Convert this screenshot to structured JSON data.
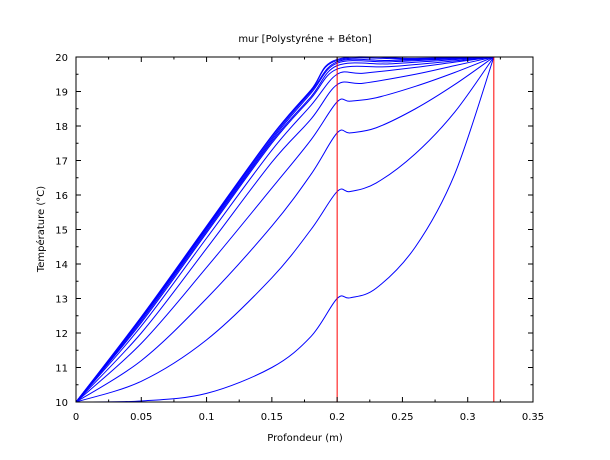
{
  "chart_data": {
    "type": "line",
    "title": "mur [Polystyréne + Béton]",
    "xlabel": "Profondeur (m)",
    "ylabel": "Température (°C)",
    "xlim": [
      0,
      0.35
    ],
    "ylim": [
      10,
      20
    ],
    "xticks": [
      "0",
      "0.05",
      "0.1",
      "0.15",
      "0.2",
      "0.25",
      "0.3",
      "0.35"
    ],
    "yticks": [
      "10",
      "11",
      "12",
      "13",
      "14",
      "15",
      "16",
      "17",
      "18",
      "19",
      "20"
    ],
    "grid": false,
    "legend": "none",
    "colors": {
      "series": "#0000ff",
      "verticals": "#ff0000",
      "frame": "#000000"
    },
    "interface_lines_x": [
      0.2,
      0.32
    ],
    "series": [
      {
        "points": [
          [
            0,
            10
          ],
          [
            0.05,
            10.03
          ],
          [
            0.1,
            10.25
          ],
          [
            0.15,
            11.0
          ],
          [
            0.18,
            11.9
          ],
          [
            0.2,
            13.0
          ],
          [
            0.21,
            13.02
          ],
          [
            0.23,
            13.3
          ],
          [
            0.26,
            14.5
          ],
          [
            0.29,
            16.6
          ],
          [
            0.32,
            20
          ]
        ]
      },
      {
        "points": [
          [
            0,
            10
          ],
          [
            0.05,
            10.6
          ],
          [
            0.1,
            11.8
          ],
          [
            0.15,
            13.6
          ],
          [
            0.18,
            15.0
          ],
          [
            0.2,
            16.1
          ],
          [
            0.21,
            16.1
          ],
          [
            0.23,
            16.35
          ],
          [
            0.26,
            17.2
          ],
          [
            0.29,
            18.4
          ],
          [
            0.32,
            20
          ]
        ]
      },
      {
        "points": [
          [
            0,
            10
          ],
          [
            0.05,
            11.2
          ],
          [
            0.1,
            13.0
          ],
          [
            0.15,
            15.1
          ],
          [
            0.18,
            16.6
          ],
          [
            0.2,
            17.8
          ],
          [
            0.21,
            17.8
          ],
          [
            0.23,
            17.95
          ],
          [
            0.26,
            18.5
          ],
          [
            0.29,
            19.2
          ],
          [
            0.32,
            20
          ]
        ]
      },
      {
        "points": [
          [
            0,
            10
          ],
          [
            0.05,
            11.7
          ],
          [
            0.1,
            13.9
          ],
          [
            0.15,
            16.2
          ],
          [
            0.18,
            17.6
          ],
          [
            0.2,
            18.7
          ],
          [
            0.21,
            18.72
          ],
          [
            0.23,
            18.82
          ],
          [
            0.26,
            19.15
          ],
          [
            0.29,
            19.55
          ],
          [
            0.32,
            20
          ]
        ]
      },
      {
        "points": [
          [
            0,
            10
          ],
          [
            0.05,
            12.0
          ],
          [
            0.1,
            14.45
          ],
          [
            0.15,
            16.95
          ],
          [
            0.18,
            18.2
          ],
          [
            0.2,
            19.2
          ],
          [
            0.22,
            19.24
          ],
          [
            0.26,
            19.5
          ],
          [
            0.29,
            19.75
          ],
          [
            0.32,
            20
          ]
        ]
      },
      {
        "points": [
          [
            0,
            10
          ],
          [
            0.05,
            12.2
          ],
          [
            0.1,
            14.75
          ],
          [
            0.15,
            17.3
          ],
          [
            0.18,
            18.6
          ],
          [
            0.2,
            19.5
          ],
          [
            0.22,
            19.53
          ],
          [
            0.26,
            19.7
          ],
          [
            0.29,
            19.85
          ],
          [
            0.32,
            20
          ]
        ]
      },
      {
        "points": [
          [
            0,
            10
          ],
          [
            0.05,
            12.3
          ],
          [
            0.1,
            14.9
          ],
          [
            0.15,
            17.5
          ],
          [
            0.18,
            18.8
          ],
          [
            0.2,
            19.65
          ],
          [
            0.24,
            19.72
          ],
          [
            0.28,
            19.85
          ],
          [
            0.32,
            20
          ]
        ]
      },
      {
        "points": [
          [
            0,
            10
          ],
          [
            0.05,
            12.35
          ],
          [
            0.1,
            14.95
          ],
          [
            0.15,
            17.55
          ],
          [
            0.18,
            18.85
          ],
          [
            0.2,
            19.75
          ],
          [
            0.24,
            19.8
          ],
          [
            0.28,
            19.9
          ],
          [
            0.32,
            20
          ]
        ]
      },
      {
        "points": [
          [
            0,
            10
          ],
          [
            0.05,
            12.4
          ],
          [
            0.1,
            15.0
          ],
          [
            0.15,
            17.6
          ],
          [
            0.18,
            18.95
          ],
          [
            0.2,
            19.82
          ],
          [
            0.24,
            19.86
          ],
          [
            0.28,
            19.93
          ],
          [
            0.32,
            20
          ]
        ]
      },
      {
        "points": [
          [
            0,
            10
          ],
          [
            0.05,
            12.42
          ],
          [
            0.1,
            15.04
          ],
          [
            0.15,
            17.65
          ],
          [
            0.18,
            19.0
          ],
          [
            0.2,
            19.86
          ],
          [
            0.24,
            19.9
          ],
          [
            0.28,
            19.95
          ],
          [
            0.32,
            20
          ]
        ]
      },
      {
        "points": [
          [
            0,
            10
          ],
          [
            0.05,
            12.45
          ],
          [
            0.1,
            15.07
          ],
          [
            0.15,
            17.7
          ],
          [
            0.18,
            19.03
          ],
          [
            0.2,
            19.9
          ],
          [
            0.26,
            19.94
          ],
          [
            0.32,
            20
          ]
        ]
      },
      {
        "points": [
          [
            0,
            10
          ],
          [
            0.05,
            12.47
          ],
          [
            0.1,
            15.1
          ],
          [
            0.15,
            17.72
          ],
          [
            0.18,
            19.05
          ],
          [
            0.2,
            19.93
          ],
          [
            0.26,
            19.96
          ],
          [
            0.32,
            20
          ]
        ]
      }
    ]
  }
}
